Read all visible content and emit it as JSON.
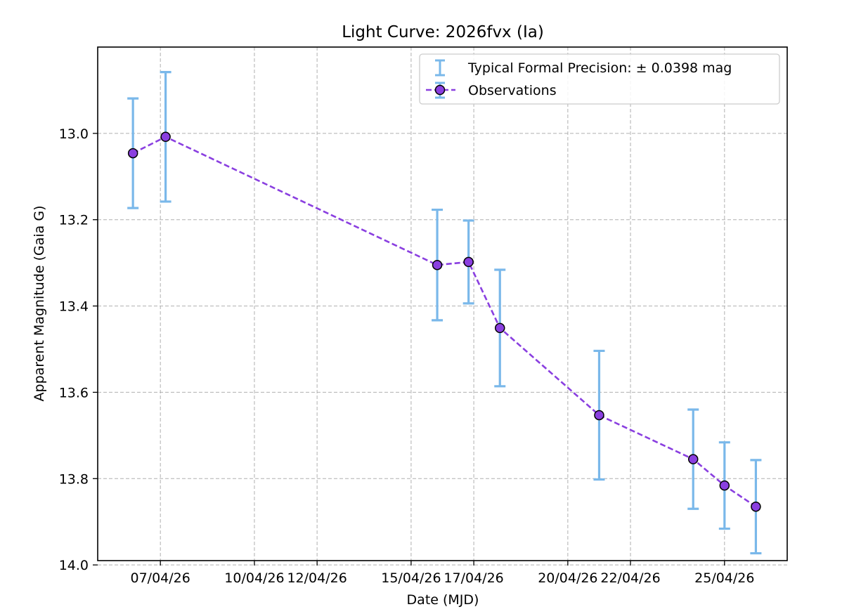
{
  "chart_data": {
    "type": "line",
    "title": "Light Curve: 2026fvx (Ia)",
    "xlabel": "Date (MJD)",
    "ylabel": "Apparent Magnitude (Gaia G)",
    "y_inverted": true,
    "ylim": [
      13.99,
      12.8
    ],
    "xlim": [
      "2026-04-05",
      "2026-04-27"
    ],
    "grid": true,
    "legend_position": "top-right",
    "x_ticks": [
      {
        "date": "2026-04-07",
        "label": "07/04/26"
      },
      {
        "date": "2026-04-10",
        "label": "10/04/26"
      },
      {
        "date": "2026-04-12",
        "label": "12/04/26"
      },
      {
        "date": "2026-04-15",
        "label": "15/04/26"
      },
      {
        "date": "2026-04-17",
        "label": "17/04/26"
      },
      {
        "date": "2026-04-20",
        "label": "20/04/26"
      },
      {
        "date": "2026-04-22",
        "label": "22/04/26"
      },
      {
        "date": "2026-04-25",
        "label": "25/04/26"
      }
    ],
    "y_ticks": [
      {
        "value": 13.0,
        "label": "13.0"
      },
      {
        "value": 13.2,
        "label": "13.2"
      },
      {
        "value": 13.4,
        "label": "13.4"
      },
      {
        "value": 13.6,
        "label": "13.6"
      },
      {
        "value": 13.8,
        "label": "13.8"
      },
      {
        "value": 14.0,
        "label": "14.0"
      }
    ],
    "legend": {
      "errorbar_label": "Typical Formal Precision: ± 0.0398 mag",
      "series_label": "Observations"
    },
    "series": [
      {
        "name": "Observations",
        "color": "#8a3fe0",
        "marker_edge": "#000000",
        "errorbar_color": "#7ab8ea",
        "points": [
          {
            "x": "2026-04-06 03:00",
            "y": 13.046,
            "err": 0.127
          },
          {
            "x": "2026-04-07 04:00",
            "y": 13.008,
            "err": 0.15
          },
          {
            "x": "2026-04-15 20:00",
            "y": 13.305,
            "err": 0.128
          },
          {
            "x": "2026-04-16 20:00",
            "y": 13.298,
            "err": 0.096
          },
          {
            "x": "2026-04-17 20:00",
            "y": 13.451,
            "err": 0.135
          },
          {
            "x": "2026-04-21 00:00",
            "y": 13.653,
            "err": 0.149
          },
          {
            "x": "2026-04-24 00:00",
            "y": 13.755,
            "err": 0.115
          },
          {
            "x": "2026-04-25 00:00",
            "y": 13.816,
            "err": 0.1
          },
          {
            "x": "2026-04-26 00:00",
            "y": 13.865,
            "err": 0.108
          }
        ]
      }
    ]
  }
}
